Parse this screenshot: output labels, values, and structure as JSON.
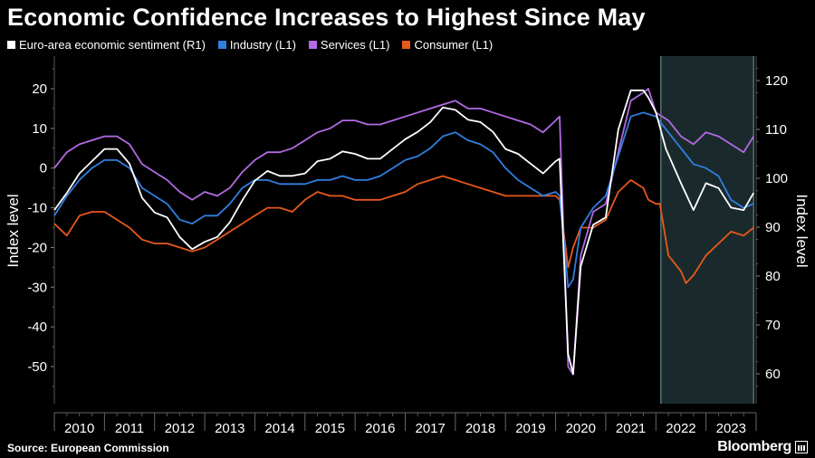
{
  "title": "Economic Confidence Increases to Highest Since May",
  "source": "Source: European Commission",
  "brand": "Bloomberg",
  "colors": {
    "background": "#000000",
    "sentiment": "#ffffff",
    "industry": "#2f7fe0",
    "services": "#b36ae2",
    "consumer": "#e8591c",
    "shade": "#1a2a2c"
  },
  "chart_data": {
    "type": "line",
    "title": "Economic Confidence Increases to Highest Since May",
    "left_axis": {
      "label": "Index level",
      "range": [
        -60,
        25
      ],
      "ticks": [
        20,
        10,
        0,
        -10,
        -20,
        -30,
        -40,
        -50
      ],
      "tick_labels": [
        "20",
        "10",
        "0",
        "-10",
        "-20",
        "-30",
        "-40",
        "-50"
      ]
    },
    "right_axis": {
      "label": "Index level",
      "range": [
        55,
        125
      ],
      "ticks": [
        120,
        110,
        100,
        90,
        80,
        70,
        60
      ],
      "tick_labels": [
        "120",
        "110",
        "100",
        "90",
        "80",
        "70",
        "60"
      ]
    },
    "x_axis": {
      "range": [
        2010,
        2024
      ],
      "labels": [
        "2010",
        "2011",
        "2012",
        "2013",
        "2014",
        "2015",
        "2016",
        "2017",
        "2018",
        "2019",
        "2020",
        "2021",
        "2022",
        "2023"
      ]
    },
    "shaded_region": {
      "from": 2022.1,
      "to": 2023.95
    },
    "legend_position": "top-left",
    "series": [
      {
        "name": "Euro-area economic sentiment (R1)",
        "axis": "right",
        "color": "#ffffff",
        "points": [
          [
            2010.0,
            93.5
          ],
          [
            2010.25,
            97
          ],
          [
            2010.5,
            101
          ],
          [
            2010.75,
            103.5
          ],
          [
            2011.0,
            106
          ],
          [
            2011.25,
            106
          ],
          [
            2011.5,
            103
          ],
          [
            2011.75,
            96
          ],
          [
            2012.0,
            93
          ],
          [
            2012.25,
            92
          ],
          [
            2012.5,
            88
          ],
          [
            2012.75,
            85.5
          ],
          [
            2013.0,
            87
          ],
          [
            2013.25,
            88
          ],
          [
            2013.5,
            91
          ],
          [
            2013.75,
            95.5
          ],
          [
            2014.0,
            99.5
          ],
          [
            2014.25,
            101.5
          ],
          [
            2014.5,
            100.5
          ],
          [
            2014.75,
            100.5
          ],
          [
            2015.0,
            101
          ],
          [
            2015.25,
            103.5
          ],
          [
            2015.5,
            104
          ],
          [
            2015.75,
            105.5
          ],
          [
            2016.0,
            105
          ],
          [
            2016.25,
            104
          ],
          [
            2016.5,
            104
          ],
          [
            2016.75,
            106
          ],
          [
            2017.0,
            108
          ],
          [
            2017.25,
            109.5
          ],
          [
            2017.5,
            111.5
          ],
          [
            2017.75,
            114.5
          ],
          [
            2018.0,
            114
          ],
          [
            2018.25,
            112
          ],
          [
            2018.5,
            111.5
          ],
          [
            2018.75,
            109.5
          ],
          [
            2019.0,
            106
          ],
          [
            2019.25,
            105
          ],
          [
            2019.5,
            103
          ],
          [
            2019.75,
            101
          ],
          [
            2020.0,
            103.5
          ],
          [
            2020.08,
            104
          ],
          [
            2020.25,
            64
          ],
          [
            2020.35,
            60
          ],
          [
            2020.5,
            82
          ],
          [
            2020.75,
            90.5
          ],
          [
            2021.0,
            92
          ],
          [
            2021.25,
            110
          ],
          [
            2021.5,
            118
          ],
          [
            2021.75,
            118
          ],
          [
            2021.85,
            116.5
          ],
          [
            2022.0,
            113.5
          ],
          [
            2022.2,
            106
          ],
          [
            2022.5,
            99
          ],
          [
            2022.75,
            93.5
          ],
          [
            2023.0,
            99
          ],
          [
            2023.25,
            98
          ],
          [
            2023.5,
            94
          ],
          [
            2023.75,
            93.5
          ],
          [
            2023.95,
            97
          ]
        ]
      },
      {
        "name": "Industry (L1)",
        "axis": "left",
        "color": "#2f7fe0",
        "points": [
          [
            2010.0,
            -12
          ],
          [
            2010.25,
            -7
          ],
          [
            2010.5,
            -3
          ],
          [
            2010.75,
            0
          ],
          [
            2011.0,
            2
          ],
          [
            2011.25,
            2
          ],
          [
            2011.5,
            0
          ],
          [
            2011.75,
            -5
          ],
          [
            2012.0,
            -7
          ],
          [
            2012.25,
            -9
          ],
          [
            2012.5,
            -13
          ],
          [
            2012.75,
            -14
          ],
          [
            2013.0,
            -12
          ],
          [
            2013.25,
            -12
          ],
          [
            2013.5,
            -9
          ],
          [
            2013.75,
            -5
          ],
          [
            2014.0,
            -3
          ],
          [
            2014.25,
            -3
          ],
          [
            2014.5,
            -4
          ],
          [
            2014.75,
            -4
          ],
          [
            2015.0,
            -4
          ],
          [
            2015.25,
            -3
          ],
          [
            2015.5,
            -3
          ],
          [
            2015.75,
            -2
          ],
          [
            2016.0,
            -3
          ],
          [
            2016.25,
            -3
          ],
          [
            2016.5,
            -2
          ],
          [
            2016.75,
            0
          ],
          [
            2017.0,
            2
          ],
          [
            2017.25,
            3
          ],
          [
            2017.5,
            5
          ],
          [
            2017.75,
            8
          ],
          [
            2018.0,
            9
          ],
          [
            2018.25,
            7
          ],
          [
            2018.5,
            6
          ],
          [
            2018.75,
            4
          ],
          [
            2019.0,
            0
          ],
          [
            2019.25,
            -3
          ],
          [
            2019.5,
            -5
          ],
          [
            2019.75,
            -7
          ],
          [
            2020.0,
            -6
          ],
          [
            2020.08,
            -7
          ],
          [
            2020.25,
            -30
          ],
          [
            2020.35,
            -28
          ],
          [
            2020.5,
            -15
          ],
          [
            2020.75,
            -10
          ],
          [
            2021.0,
            -7
          ],
          [
            2021.25,
            3
          ],
          [
            2021.5,
            13
          ],
          [
            2021.75,
            14
          ],
          [
            2022.0,
            13
          ],
          [
            2022.25,
            9
          ],
          [
            2022.5,
            5
          ],
          [
            2022.75,
            1
          ],
          [
            2023.0,
            0
          ],
          [
            2023.25,
            -2
          ],
          [
            2023.5,
            -8
          ],
          [
            2023.75,
            -10
          ],
          [
            2023.95,
            -9
          ]
        ]
      },
      {
        "name": "Services (L1)",
        "axis": "left",
        "color": "#b36ae2",
        "points": [
          [
            2010.0,
            0
          ],
          [
            2010.25,
            4
          ],
          [
            2010.5,
            6
          ],
          [
            2010.75,
            7
          ],
          [
            2011.0,
            8
          ],
          [
            2011.25,
            8
          ],
          [
            2011.5,
            6
          ],
          [
            2011.75,
            1
          ],
          [
            2012.0,
            -1
          ],
          [
            2012.25,
            -3
          ],
          [
            2012.5,
            -6
          ],
          [
            2012.75,
            -8
          ],
          [
            2013.0,
            -6
          ],
          [
            2013.25,
            -7
          ],
          [
            2013.5,
            -5
          ],
          [
            2013.75,
            -1
          ],
          [
            2014.0,
            2
          ],
          [
            2014.25,
            4
          ],
          [
            2014.5,
            4
          ],
          [
            2014.75,
            5
          ],
          [
            2015.0,
            7
          ],
          [
            2015.25,
            9
          ],
          [
            2015.5,
            10
          ],
          [
            2015.75,
            12
          ],
          [
            2016.0,
            12
          ],
          [
            2016.25,
            11
          ],
          [
            2016.5,
            11
          ],
          [
            2016.75,
            12
          ],
          [
            2017.0,
            13
          ],
          [
            2017.25,
            14
          ],
          [
            2017.5,
            15
          ],
          [
            2017.75,
            16
          ],
          [
            2018.0,
            17
          ],
          [
            2018.25,
            15
          ],
          [
            2018.5,
            15
          ],
          [
            2018.75,
            14
          ],
          [
            2019.0,
            13
          ],
          [
            2019.25,
            12
          ],
          [
            2019.5,
            11
          ],
          [
            2019.75,
            9
          ],
          [
            2020.0,
            12
          ],
          [
            2020.08,
            13
          ],
          [
            2020.25,
            -50
          ],
          [
            2020.35,
            -52
          ],
          [
            2020.5,
            -22
          ],
          [
            2020.75,
            -11
          ],
          [
            2021.0,
            -9
          ],
          [
            2021.25,
            4
          ],
          [
            2021.5,
            17
          ],
          [
            2021.75,
            19
          ],
          [
            2021.85,
            20
          ],
          [
            2022.0,
            14
          ],
          [
            2022.25,
            12
          ],
          [
            2022.5,
            8
          ],
          [
            2022.75,
            6
          ],
          [
            2023.0,
            9
          ],
          [
            2023.25,
            8
          ],
          [
            2023.5,
            6
          ],
          [
            2023.75,
            4
          ],
          [
            2023.95,
            8
          ]
        ]
      },
      {
        "name": "Consumer (L1)",
        "axis": "left",
        "color": "#e8591c",
        "points": [
          [
            2010.0,
            -14
          ],
          [
            2010.25,
            -17
          ],
          [
            2010.5,
            -12
          ],
          [
            2010.75,
            -11
          ],
          [
            2011.0,
            -11
          ],
          [
            2011.25,
            -13
          ],
          [
            2011.5,
            -15
          ],
          [
            2011.75,
            -18
          ],
          [
            2012.0,
            -19
          ],
          [
            2012.25,
            -19
          ],
          [
            2012.5,
            -20
          ],
          [
            2012.75,
            -21
          ],
          [
            2013.0,
            -20
          ],
          [
            2013.25,
            -18
          ],
          [
            2013.5,
            -16
          ],
          [
            2013.75,
            -14
          ],
          [
            2014.0,
            -12
          ],
          [
            2014.25,
            -10
          ],
          [
            2014.5,
            -10
          ],
          [
            2014.75,
            -11
          ],
          [
            2015.0,
            -8
          ],
          [
            2015.25,
            -6
          ],
          [
            2015.5,
            -7
          ],
          [
            2015.75,
            -7
          ],
          [
            2016.0,
            -8
          ],
          [
            2016.25,
            -8
          ],
          [
            2016.5,
            -8
          ],
          [
            2016.75,
            -7
          ],
          [
            2017.0,
            -6
          ],
          [
            2017.25,
            -4
          ],
          [
            2017.5,
            -3
          ],
          [
            2017.75,
            -2
          ],
          [
            2018.0,
            -3
          ],
          [
            2018.25,
            -4
          ],
          [
            2018.5,
            -5
          ],
          [
            2018.75,
            -6
          ],
          [
            2019.0,
            -7
          ],
          [
            2019.25,
            -7
          ],
          [
            2019.5,
            -7
          ],
          [
            2019.75,
            -7
          ],
          [
            2020.0,
            -7
          ],
          [
            2020.08,
            -8
          ],
          [
            2020.25,
            -25
          ],
          [
            2020.35,
            -20
          ],
          [
            2020.5,
            -15
          ],
          [
            2020.75,
            -15
          ],
          [
            2021.0,
            -13
          ],
          [
            2021.25,
            -6
          ],
          [
            2021.5,
            -3
          ],
          [
            2021.75,
            -5
          ],
          [
            2021.85,
            -8
          ],
          [
            2022.0,
            -9
          ],
          [
            2022.08,
            -9
          ],
          [
            2022.25,
            -22
          ],
          [
            2022.5,
            -26
          ],
          [
            2022.6,
            -29
          ],
          [
            2022.75,
            -27
          ],
          [
            2023.0,
            -22
          ],
          [
            2023.25,
            -19
          ],
          [
            2023.5,
            -16
          ],
          [
            2023.75,
            -17
          ],
          [
            2023.95,
            -15
          ]
        ]
      }
    ]
  }
}
